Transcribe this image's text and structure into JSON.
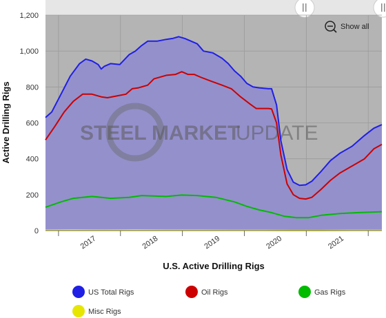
{
  "chart_data": {
    "type": "area",
    "title": "",
    "xlabel": "U.S. Active Drilling Rigs",
    "ylabel": "Active Drilling Rigs",
    "ylim": [
      0,
      1200
    ],
    "yticks": [
      "0",
      "200",
      "400",
      "600",
      "800",
      "1,000",
      "1,200"
    ],
    "xlim": [
      2016.55,
      2021.98
    ],
    "xticks": [
      {
        "label": "2017",
        "x": 2017.0
      },
      {
        "label": "2018",
        "x": 2018.0
      },
      {
        "label": "2019",
        "x": 2019.0
      },
      {
        "label": "2020",
        "x": 2020.0
      },
      {
        "label": "2021",
        "x": 2021.0
      }
    ],
    "grid": true,
    "legend_position": "bottom",
    "series": [
      {
        "name": "US Total Rigs",
        "color": "#1f1fe6",
        "points": [
          [
            2016.55,
            630
          ],
          [
            2016.65,
            660
          ],
          [
            2016.8,
            760
          ],
          [
            2016.95,
            860
          ],
          [
            2017.1,
            930
          ],
          [
            2017.2,
            955
          ],
          [
            2017.3,
            945
          ],
          [
            2017.4,
            925
          ],
          [
            2017.45,
            900
          ],
          [
            2017.5,
            915
          ],
          [
            2017.6,
            930
          ],
          [
            2017.75,
            925
          ],
          [
            2017.9,
            980
          ],
          [
            2018.0,
            1000
          ],
          [
            2018.1,
            1030
          ],
          [
            2018.2,
            1055
          ],
          [
            2018.35,
            1055
          ],
          [
            2018.5,
            1065
          ],
          [
            2018.6,
            1070
          ],
          [
            2018.7,
            1080
          ],
          [
            2018.8,
            1070
          ],
          [
            2018.9,
            1055
          ],
          [
            2019.0,
            1040
          ],
          [
            2019.1,
            1000
          ],
          [
            2019.25,
            990
          ],
          [
            2019.4,
            960
          ],
          [
            2019.5,
            930
          ],
          [
            2019.6,
            890
          ],
          [
            2019.7,
            860
          ],
          [
            2019.8,
            820
          ],
          [
            2019.9,
            800
          ],
          [
            2020.0,
            795
          ],
          [
            2020.15,
            790
          ],
          [
            2020.2,
            790
          ],
          [
            2020.28,
            700
          ],
          [
            2020.35,
            500
          ],
          [
            2020.45,
            340
          ],
          [
            2020.55,
            270
          ],
          [
            2020.65,
            252
          ],
          [
            2020.75,
            255
          ],
          [
            2020.85,
            275
          ],
          [
            2021.0,
            330
          ],
          [
            2021.15,
            390
          ],
          [
            2021.3,
            430
          ],
          [
            2021.5,
            470
          ],
          [
            2021.7,
            530
          ],
          [
            2021.85,
            570
          ],
          [
            2021.98,
            590
          ]
        ]
      },
      {
        "name": "Oil Rigs",
        "color": "#cc0000",
        "points": [
          [
            2016.55,
            505
          ],
          [
            2016.7,
            580
          ],
          [
            2016.85,
            660
          ],
          [
            2017.0,
            720
          ],
          [
            2017.15,
            760
          ],
          [
            2017.3,
            760
          ],
          [
            2017.45,
            745
          ],
          [
            2017.55,
            740
          ],
          [
            2017.7,
            750
          ],
          [
            2017.85,
            760
          ],
          [
            2017.95,
            790
          ],
          [
            2018.05,
            795
          ],
          [
            2018.2,
            810
          ],
          [
            2018.3,
            845
          ],
          [
            2018.5,
            865
          ],
          [
            2018.65,
            870
          ],
          [
            2018.75,
            885
          ],
          [
            2018.85,
            870
          ],
          [
            2018.95,
            870
          ],
          [
            2019.05,
            855
          ],
          [
            2019.2,
            835
          ],
          [
            2019.4,
            810
          ],
          [
            2019.55,
            790
          ],
          [
            2019.7,
            745
          ],
          [
            2019.85,
            705
          ],
          [
            2019.95,
            680
          ],
          [
            2020.05,
            680
          ],
          [
            2020.15,
            680
          ],
          [
            2020.2,
            678
          ],
          [
            2020.28,
            600
          ],
          [
            2020.35,
            420
          ],
          [
            2020.45,
            260
          ],
          [
            2020.55,
            200
          ],
          [
            2020.65,
            180
          ],
          [
            2020.75,
            176
          ],
          [
            2020.85,
            185
          ],
          [
            2021.0,
            230
          ],
          [
            2021.15,
            280
          ],
          [
            2021.3,
            320
          ],
          [
            2021.5,
            360
          ],
          [
            2021.7,
            400
          ],
          [
            2021.85,
            455
          ],
          [
            2021.98,
            480
          ]
        ]
      },
      {
        "name": "Gas Rigs",
        "color": "#00bb00",
        "points": [
          [
            2016.55,
            130
          ],
          [
            2016.8,
            160
          ],
          [
            2017.0,
            180
          ],
          [
            2017.3,
            190
          ],
          [
            2017.6,
            180
          ],
          [
            2017.9,
            185
          ],
          [
            2018.1,
            195
          ],
          [
            2018.5,
            190
          ],
          [
            2018.75,
            198
          ],
          [
            2019.0,
            195
          ],
          [
            2019.3,
            185
          ],
          [
            2019.6,
            160
          ],
          [
            2019.8,
            135
          ],
          [
            2020.0,
            115
          ],
          [
            2020.2,
            100
          ],
          [
            2020.4,
            80
          ],
          [
            2020.6,
            72
          ],
          [
            2020.8,
            72
          ],
          [
            2021.0,
            85
          ],
          [
            2021.3,
            95
          ],
          [
            2021.6,
            100
          ],
          [
            2021.98,
            105
          ]
        ]
      },
      {
        "name": "Misc Rigs",
        "color": "#e6e600",
        "points": [
          [
            2016.55,
            3
          ],
          [
            2017.0,
            4
          ],
          [
            2017.5,
            3
          ],
          [
            2018.0,
            4
          ],
          [
            2018.5,
            3
          ],
          [
            2019.0,
            3
          ],
          [
            2019.5,
            2
          ],
          [
            2020.0,
            2
          ],
          [
            2020.5,
            1
          ],
          [
            2021.0,
            1
          ],
          [
            2021.5,
            2
          ],
          [
            2021.98,
            2
          ]
        ]
      }
    ]
  },
  "watermark": {
    "word1": "STEEL",
    "word2": "MARKET",
    "word3": "UPDATE"
  },
  "controls": {
    "show_all": "Show all"
  },
  "colors": {
    "plot_bg": "#b4b4b4",
    "fill": "#9490cc",
    "navigator": "#e6e6e6"
  }
}
